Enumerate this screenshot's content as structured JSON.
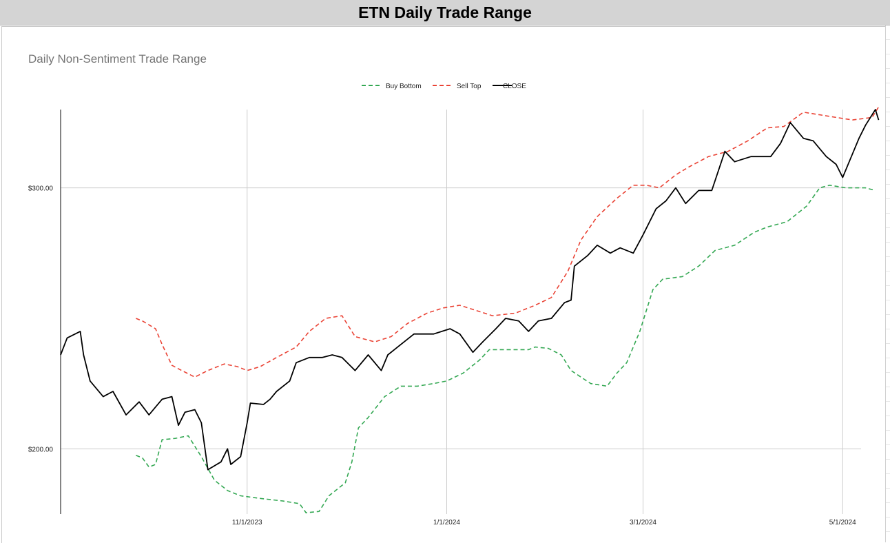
{
  "sheet_title": "ETN Daily Trade Range",
  "chart_data": {
    "type": "line",
    "title": "Daily Non-Sentiment Trade Range",
    "xlabel": "",
    "ylabel": "",
    "x_ticks": [
      "11/1/2023",
      "1/1/2024",
      "3/1/2024",
      "5/1/2024"
    ],
    "y_ticks": [
      "$200.00",
      "$300.00"
    ],
    "ylim": [
      175,
      330
    ],
    "grid": true,
    "legend_position": "top-center",
    "series": [
      {
        "name": "Buy Bottom",
        "color": "#34a853",
        "dash": true,
        "points": [
          [
            "2023-09-28",
            197.5
          ],
          [
            "2023-09-30",
            196.5
          ],
          [
            "2023-10-02",
            193.0
          ],
          [
            "2023-10-04",
            194.0
          ],
          [
            "2023-10-06",
            203.5
          ],
          [
            "2023-10-10",
            204.0
          ],
          [
            "2023-10-14",
            205.0
          ],
          [
            "2023-10-18",
            197.0
          ],
          [
            "2023-10-22",
            188.0
          ],
          [
            "2023-10-26",
            184.0
          ],
          [
            "2023-10-30",
            182.0
          ],
          [
            "2023-11-05",
            181.0
          ],
          [
            "2023-11-12",
            180.0
          ],
          [
            "2023-11-17",
            179.0
          ],
          [
            "2023-11-19",
            175.5
          ],
          [
            "2023-11-23",
            176.0
          ],
          [
            "2023-11-26",
            182.0
          ],
          [
            "2023-12-01",
            187.0
          ],
          [
            "2023-12-03",
            195.0
          ],
          [
            "2023-12-05",
            208.0
          ],
          [
            "2023-12-08",
            212.0
          ],
          [
            "2023-12-13",
            220.0
          ],
          [
            "2023-12-18",
            224.0
          ],
          [
            "2023-12-23",
            224.0
          ],
          [
            "2023-12-28",
            225.0
          ],
          [
            "2024-01-01",
            226.0
          ],
          [
            "2024-01-06",
            229.0
          ],
          [
            "2024-01-11",
            234.0
          ],
          [
            "2024-01-14",
            238.0
          ],
          [
            "2024-01-20",
            238.0
          ],
          [
            "2024-01-26",
            238.0
          ],
          [
            "2024-01-28",
            239.0
          ],
          [
            "2024-02-01",
            238.5
          ],
          [
            "2024-02-05",
            236.0
          ],
          [
            "2024-02-08",
            230.0
          ],
          [
            "2024-02-14",
            225.0
          ],
          [
            "2024-02-19",
            224.0
          ],
          [
            "2024-02-22",
            229.0
          ],
          [
            "2024-02-25",
            233.0
          ],
          [
            "2024-02-29",
            245.0
          ],
          [
            "2024-03-04",
            261.0
          ],
          [
            "2024-03-07",
            265.0
          ],
          [
            "2024-03-13",
            266.0
          ],
          [
            "2024-03-18",
            270.0
          ],
          [
            "2024-03-23",
            276.0
          ],
          [
            "2024-03-29",
            278.0
          ],
          [
            "2024-04-04",
            283.0
          ],
          [
            "2024-04-08",
            285.0
          ],
          [
            "2024-04-14",
            287.0
          ],
          [
            "2024-04-17",
            290.0
          ],
          [
            "2024-04-20",
            293.0
          ],
          [
            "2024-04-24",
            300.0
          ],
          [
            "2024-04-27",
            301.0
          ],
          [
            "2024-05-02",
            300.0
          ],
          [
            "2024-05-08",
            300.0
          ],
          [
            "2024-05-11",
            299.0
          ]
        ]
      },
      {
        "name": "Sell Top",
        "color": "#ea4335",
        "dash": true,
        "points": [
          [
            "2023-09-28",
            250.0
          ],
          [
            "2023-09-30",
            249.0
          ],
          [
            "2023-10-04",
            246.0
          ],
          [
            "2023-10-06",
            240.0
          ],
          [
            "2023-10-09",
            232.0
          ],
          [
            "2023-10-12",
            230.0
          ],
          [
            "2023-10-16",
            227.5
          ],
          [
            "2023-10-20",
            230.0
          ],
          [
            "2023-10-25",
            232.5
          ],
          [
            "2023-10-29",
            231.5
          ],
          [
            "2023-11-01",
            230.0
          ],
          [
            "2023-11-05",
            231.5
          ],
          [
            "2023-11-10",
            235.0
          ],
          [
            "2023-11-16",
            239.0
          ],
          [
            "2023-11-20",
            245.0
          ],
          [
            "2023-11-25",
            250.0
          ],
          [
            "2023-11-30",
            251.0
          ],
          [
            "2023-12-04",
            243.0
          ],
          [
            "2023-12-10",
            241.0
          ],
          [
            "2023-12-15",
            243.0
          ],
          [
            "2023-12-20",
            248.0
          ],
          [
            "2023-12-26",
            252.0
          ],
          [
            "2023-12-31",
            254.0
          ],
          [
            "2024-01-05",
            255.0
          ],
          [
            "2024-01-10",
            253.0
          ],
          [
            "2024-01-15",
            251.0
          ],
          [
            "2024-01-22",
            252.0
          ],
          [
            "2024-01-28",
            255.0
          ],
          [
            "2024-02-02",
            258.0
          ],
          [
            "2024-02-07",
            268.0
          ],
          [
            "2024-02-11",
            280.0
          ],
          [
            "2024-02-16",
            289.0
          ],
          [
            "2024-02-22",
            296.0
          ],
          [
            "2024-02-27",
            301.0
          ],
          [
            "2024-03-02",
            301.0
          ],
          [
            "2024-03-06",
            300.0
          ],
          [
            "2024-03-11",
            305.0
          ],
          [
            "2024-03-15",
            308.0
          ],
          [
            "2024-03-21",
            312.0
          ],
          [
            "2024-03-27",
            314.0
          ],
          [
            "2024-04-02",
            318.0
          ],
          [
            "2024-04-08",
            323.0
          ],
          [
            "2024-04-13",
            323.5
          ],
          [
            "2024-04-19",
            329.0
          ],
          [
            "2024-04-24",
            328.0
          ],
          [
            "2024-04-29",
            327.0
          ],
          [
            "2024-05-04",
            326.0
          ],
          [
            "2024-05-10",
            327.0
          ],
          [
            "2024-05-12",
            331.0
          ]
        ]
      },
      {
        "name": "CLOSE",
        "color": "#000000",
        "dash": false,
        "points": [
          [
            "2023-09-05",
            236.0
          ],
          [
            "2023-09-07",
            242.5
          ],
          [
            "2023-09-11",
            245.0
          ],
          [
            "2023-09-12",
            236.0
          ],
          [
            "2023-09-14",
            226.0
          ],
          [
            "2023-09-18",
            220.0
          ],
          [
            "2023-09-21",
            222.0
          ],
          [
            "2023-09-25",
            213.0
          ],
          [
            "2023-09-29",
            218.0
          ],
          [
            "2023-10-02",
            213.0
          ],
          [
            "2023-10-04",
            216.0
          ],
          [
            "2023-10-06",
            219.0
          ],
          [
            "2023-10-09",
            220.0
          ],
          [
            "2023-10-11",
            209.0
          ],
          [
            "2023-10-13",
            214.0
          ],
          [
            "2023-10-16",
            215.0
          ],
          [
            "2023-10-18",
            210.0
          ],
          [
            "2023-10-20",
            192.0
          ],
          [
            "2023-10-24",
            195.0
          ],
          [
            "2023-10-26",
            200.0
          ],
          [
            "2023-10-27",
            194.0
          ],
          [
            "2023-10-30",
            197.0
          ],
          [
            "2023-11-01",
            210.0
          ],
          [
            "2023-11-02",
            217.5
          ],
          [
            "2023-11-06",
            217.0
          ],
          [
            "2023-11-08",
            219.0
          ],
          [
            "2023-11-10",
            222.0
          ],
          [
            "2023-11-14",
            226.0
          ],
          [
            "2023-11-16",
            233.0
          ],
          [
            "2023-11-20",
            235.0
          ],
          [
            "2023-11-24",
            235.0
          ],
          [
            "2023-11-27",
            236.0
          ],
          [
            "2023-11-30",
            235.0
          ],
          [
            "2023-12-04",
            230.0
          ],
          [
            "2023-12-08",
            236.0
          ],
          [
            "2023-12-12",
            230.0
          ],
          [
            "2023-12-14",
            236.0
          ],
          [
            "2023-12-18",
            240.0
          ],
          [
            "2023-12-22",
            244.0
          ],
          [
            "2023-12-28",
            244.0
          ],
          [
            "2024-01-02",
            246.0
          ],
          [
            "2024-01-05",
            244.0
          ],
          [
            "2024-01-09",
            237.0
          ],
          [
            "2024-01-12",
            241.0
          ],
          [
            "2024-01-16",
            246.0
          ],
          [
            "2024-01-19",
            250.0
          ],
          [
            "2024-01-23",
            249.0
          ],
          [
            "2024-01-26",
            245.0
          ],
          [
            "2024-01-29",
            249.0
          ],
          [
            "2024-02-02",
            250.0
          ],
          [
            "2024-02-06",
            256.0
          ],
          [
            "2024-02-08",
            257.0
          ],
          [
            "2024-02-09",
            270.0
          ],
          [
            "2024-02-13",
            274.0
          ],
          [
            "2024-02-16",
            278.0
          ],
          [
            "2024-02-20",
            275.0
          ],
          [
            "2024-02-23",
            277.0
          ],
          [
            "2024-02-27",
            275.0
          ],
          [
            "2024-03-01",
            282.0
          ],
          [
            "2024-03-05",
            292.0
          ],
          [
            "2024-03-08",
            295.0
          ],
          [
            "2024-03-11",
            300.0
          ],
          [
            "2024-03-14",
            294.0
          ],
          [
            "2024-03-18",
            299.0
          ],
          [
            "2024-03-22",
            299.0
          ],
          [
            "2024-03-26",
            314.0
          ],
          [
            "2024-03-29",
            310.0
          ],
          [
            "2024-04-03",
            312.0
          ],
          [
            "2024-04-09",
            312.0
          ],
          [
            "2024-04-12",
            317.0
          ],
          [
            "2024-04-15",
            325.0
          ],
          [
            "2024-04-19",
            319.0
          ],
          [
            "2024-04-22",
            318.0
          ],
          [
            "2024-04-26",
            312.0
          ],
          [
            "2024-04-29",
            309.0
          ],
          [
            "2024-05-01",
            304.0
          ],
          [
            "2024-05-03",
            310.0
          ],
          [
            "2024-05-06",
            319.0
          ],
          [
            "2024-05-08",
            324.0
          ],
          [
            "2024-05-11",
            330.0
          ],
          [
            "2024-05-12",
            326.0
          ]
        ]
      }
    ]
  }
}
